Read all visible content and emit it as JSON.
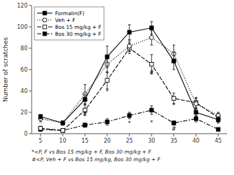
{
  "chart_data": {
    "type": "line",
    "x": [
      5,
      10,
      15,
      20,
      25,
      30,
      35,
      40,
      45
    ],
    "xlim": [
      3,
      47
    ],
    "xticks": [
      5,
      10,
      15,
      20,
      25,
      30,
      35,
      40,
      45
    ],
    "ylim": [
      0,
      120
    ],
    "yticks": [
      0,
      20,
      40,
      60,
      80,
      100,
      120
    ],
    "ylabel": "Number of scratches",
    "grid": false,
    "legend": "upper-left",
    "series": [
      {
        "name": "Formalin(F)",
        "color": "#000000",
        "marker": "filled-square",
        "line_style": "solid",
        "values": [
          16,
          10,
          32,
          72,
          95,
          99,
          68,
          20,
          13
        ],
        "errors": [
          2,
          2,
          5,
          10,
          7,
          6,
          8,
          4,
          3
        ]
      },
      {
        "name": "Veh + F",
        "color": "#000000",
        "marker": "open-circle",
        "line_style": "dotted",
        "values": [
          14,
          10,
          37,
          65,
          82,
          90,
          75,
          28,
          17
        ],
        "errors": [
          3,
          2,
          9,
          8,
          5,
          7,
          8,
          5,
          3
        ]
      },
      {
        "name": "Bos 15 mg/kg + F",
        "color": "#000000",
        "marker": "open-square",
        "line_style": "dashed",
        "values": [
          5,
          3,
          22,
          50,
          80,
          65,
          33,
          29,
          15
        ],
        "errors": [
          2,
          1,
          5,
          8,
          5,
          9,
          5,
          5,
          4
        ]
      },
      {
        "name": "Bos 30 mg/kg + F",
        "color": "#000000",
        "marker": "filled-square",
        "line_style": "dashdot",
        "values": [
          4,
          3,
          8,
          11,
          17,
          22,
          10,
          14,
          4
        ],
        "errors": [
          1,
          1,
          2,
          3,
          3,
          4,
          2,
          3,
          1
        ]
      }
    ],
    "annotations": [
      {
        "text": "*",
        "x": 20,
        "y": 42
      },
      {
        "text": "*",
        "x": 25,
        "y": 12
      },
      {
        "text": "*",
        "x": 30,
        "y": 13
      },
      {
        "text": "*",
        "x": 35,
        "y": 29
      },
      {
        "text": "#",
        "x": 15,
        "y": 21
      },
      {
        "text": "#",
        "x": 30,
        "y": 60
      },
      {
        "text": "#",
        "x": 35,
        "y": 7
      }
    ],
    "footnotes": [
      "*<P, F vs Bos 15 mg/kg + F, Bos 30 mg/kg + F",
      "#<P, Veh + F vs Bos 15 mg/kg, Bos 30 mg/kg + F"
    ]
  }
}
